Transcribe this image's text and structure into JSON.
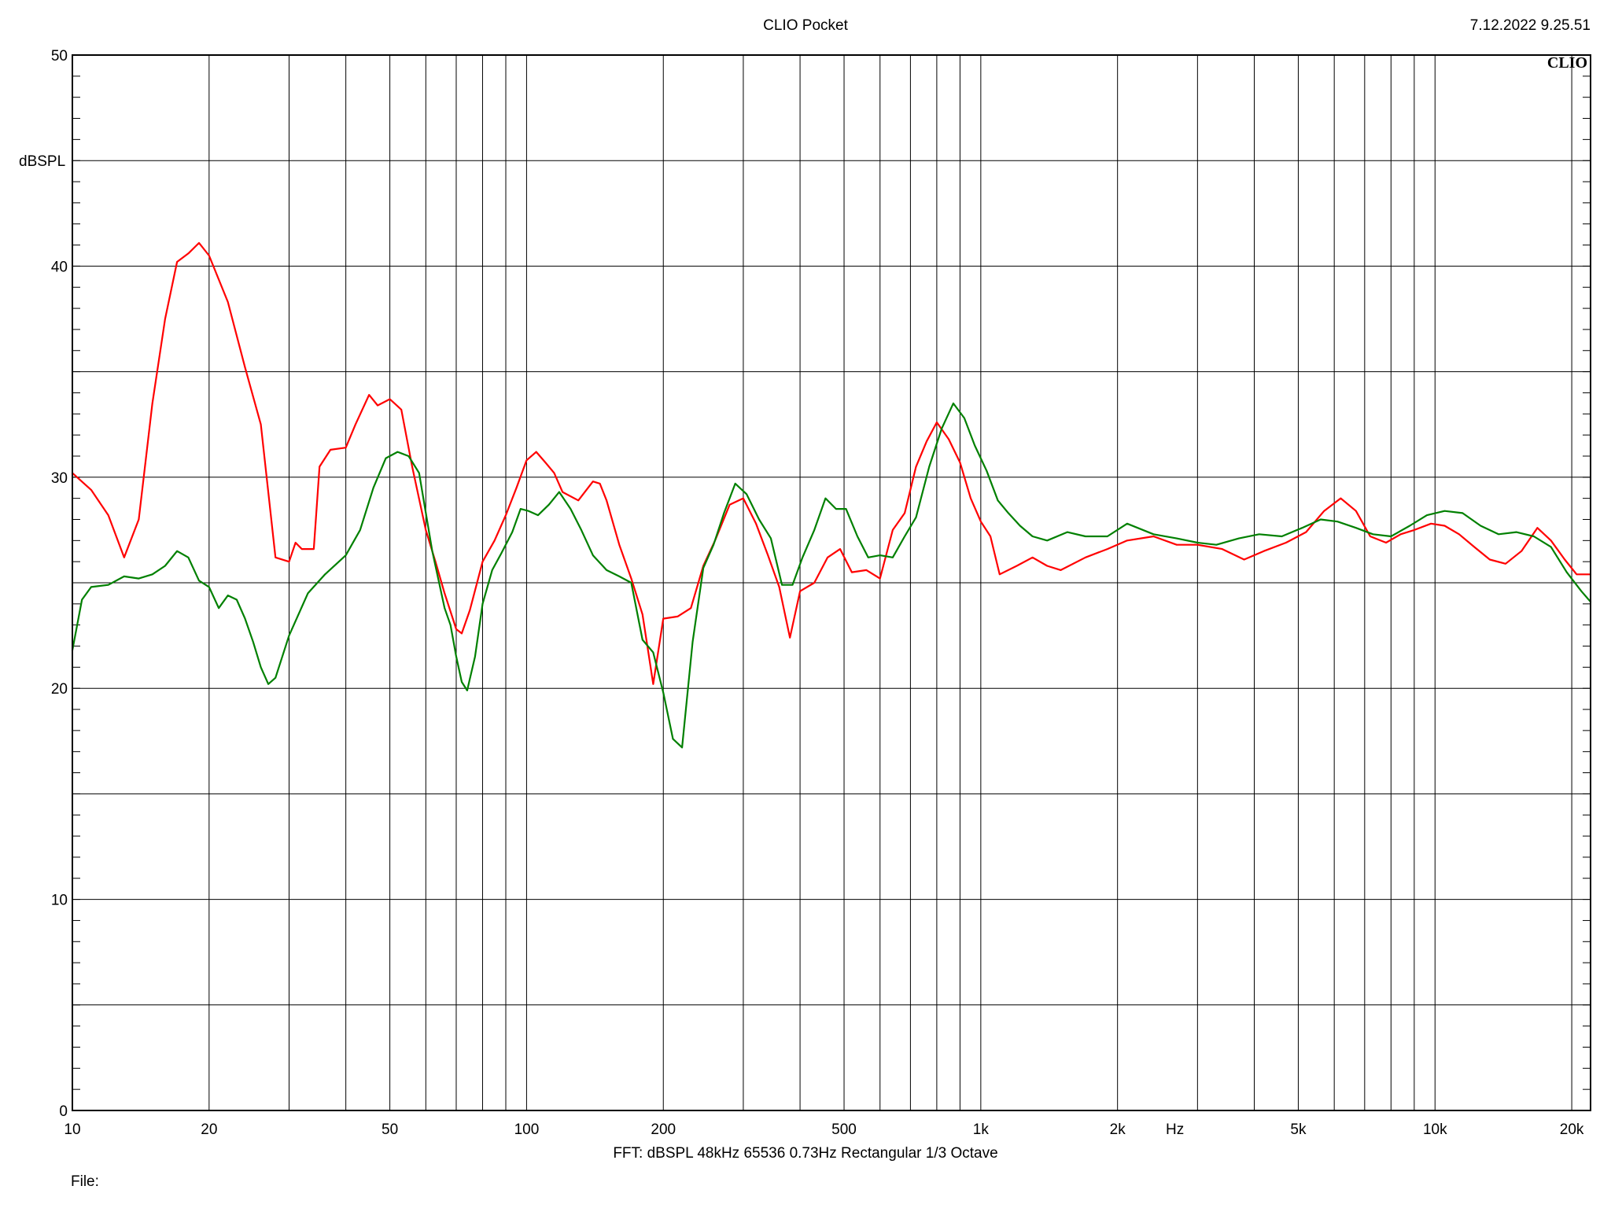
{
  "header": {
    "title": "CLIO Pocket",
    "datetime": "7.12.2022 9.25.51"
  },
  "brand": {
    "logo_text": "CLIO"
  },
  "footer": {
    "settings": "FFT:  dBSPL  48kHz   65536  0.73Hz  Rectangular  1/3 Octave",
    "file_label": "File:"
  },
  "colors": {
    "series_red": "#ff0000",
    "series_green": "#008000",
    "grid": "#000000"
  },
  "chart_data": {
    "type": "line",
    "title": "CLIO Pocket",
    "xlabel": "Hz",
    "ylabel": "dBSPL",
    "x_scale": "log",
    "xlim": [
      10,
      22000
    ],
    "ylim": [
      0,
      50
    ],
    "grid": true,
    "y_ticks": [
      0,
      10,
      20,
      30,
      40,
      50
    ],
    "x_ticks": [
      {
        "value": 10,
        "label": "10"
      },
      {
        "value": 20,
        "label": "20"
      },
      {
        "value": 50,
        "label": "50"
      },
      {
        "value": 100,
        "label": "100"
      },
      {
        "value": 200,
        "label": "200"
      },
      {
        "value": 500,
        "label": "500"
      },
      {
        "value": 1000,
        "label": "1k"
      },
      {
        "value": 2000,
        "label": "2k"
      },
      {
        "value": 5000,
        "label": "5k"
      },
      {
        "value": 10000,
        "label": "10k"
      },
      {
        "value": 20000,
        "label": "20k"
      }
    ],
    "series": [
      {
        "color": "#ff0000",
        "points": [
          [
            10,
            30.2
          ],
          [
            11,
            29.4
          ],
          [
            12,
            28.2
          ],
          [
            13,
            26.2
          ],
          [
            14,
            28
          ],
          [
            15,
            33.5
          ],
          [
            16,
            37.5
          ],
          [
            17,
            40.2
          ],
          [
            18,
            40.6
          ],
          [
            19,
            41.1
          ],
          [
            20,
            40.5
          ],
          [
            22,
            38.3
          ],
          [
            24,
            35.2
          ],
          [
            26,
            32.5
          ],
          [
            28,
            26.2
          ],
          [
            30,
            26
          ],
          [
            31,
            26.9
          ],
          [
            32,
            26.6
          ],
          [
            34,
            26.6
          ],
          [
            35,
            30.5
          ],
          [
            37,
            31.3
          ],
          [
            40,
            31.4
          ],
          [
            42,
            32.5
          ],
          [
            45,
            33.9
          ],
          [
            47,
            33.4
          ],
          [
            50,
            33.7
          ],
          [
            53,
            33.2
          ],
          [
            56,
            30.5
          ],
          [
            60,
            27.5
          ],
          [
            63,
            26
          ],
          [
            66,
            24.5
          ],
          [
            70,
            22.8
          ],
          [
            72,
            22.6
          ],
          [
            75,
            23.7
          ],
          [
            80,
            26
          ],
          [
            85,
            27
          ],
          [
            90,
            28.2
          ],
          [
            95,
            29.5
          ],
          [
            100,
            30.8
          ],
          [
            105,
            31.2
          ],
          [
            110,
            30.7
          ],
          [
            115,
            30.2
          ],
          [
            120,
            29.3
          ],
          [
            130,
            28.9
          ],
          [
            140,
            29.8
          ],
          [
            145,
            29.7
          ],
          [
            150,
            28.9
          ],
          [
            160,
            26.8
          ],
          [
            170,
            25.2
          ],
          [
            180,
            23.5
          ],
          [
            190,
            20.2
          ],
          [
            200,
            23.3
          ],
          [
            215,
            23.4
          ],
          [
            230,
            23.8
          ],
          [
            245,
            25.8
          ],
          [
            260,
            27
          ],
          [
            280,
            28.7
          ],
          [
            300,
            29
          ],
          [
            320,
            27.8
          ],
          [
            340,
            26.3
          ],
          [
            360,
            24.8
          ],
          [
            380,
            22.4
          ],
          [
            400,
            24.6
          ],
          [
            430,
            25
          ],
          [
            460,
            26.2
          ],
          [
            490,
            26.6
          ],
          [
            520,
            25.5
          ],
          [
            560,
            25.6
          ],
          [
            600,
            25.2
          ],
          [
            640,
            27.5
          ],
          [
            680,
            28.3
          ],
          [
            720,
            30.5
          ],
          [
            760,
            31.7
          ],
          [
            800,
            32.6
          ],
          [
            850,
            31.8
          ],
          [
            900,
            30.7
          ],
          [
            950,
            29
          ],
          [
            1000,
            27.9
          ],
          [
            1050,
            27.2
          ],
          [
            1100,
            25.4
          ],
          [
            1200,
            25.8
          ],
          [
            1300,
            26.2
          ],
          [
            1400,
            25.8
          ],
          [
            1500,
            25.6
          ],
          [
            1700,
            26.2
          ],
          [
            1900,
            26.6
          ],
          [
            2100,
            27
          ],
          [
            2400,
            27.2
          ],
          [
            2700,
            26.8
          ],
          [
            3000,
            26.8
          ],
          [
            3400,
            26.6
          ],
          [
            3800,
            26.1
          ],
          [
            4200,
            26.5
          ],
          [
            4700,
            26.9
          ],
          [
            5200,
            27.4
          ],
          [
            5700,
            28.4
          ],
          [
            6200,
            29
          ],
          [
            6700,
            28.4
          ],
          [
            7200,
            27.2
          ],
          [
            7800,
            26.9
          ],
          [
            8400,
            27.3
          ],
          [
            9000,
            27.5
          ],
          [
            9800,
            27.8
          ],
          [
            10500,
            27.7
          ],
          [
            11300,
            27.3
          ],
          [
            12200,
            26.7
          ],
          [
            13200,
            26.1
          ],
          [
            14300,
            25.9
          ],
          [
            15500,
            26.5
          ],
          [
            16800,
            27.6
          ],
          [
            18000,
            27
          ],
          [
            19300,
            26.1
          ],
          [
            20500,
            25.4
          ],
          [
            22000,
            25.4
          ]
        ]
      },
      {
        "color": "#008000",
        "points": [
          [
            10,
            21.8
          ],
          [
            10.5,
            24.2
          ],
          [
            11,
            24.8
          ],
          [
            12,
            24.9
          ],
          [
            13,
            25.3
          ],
          [
            14,
            25.2
          ],
          [
            15,
            25.4
          ],
          [
            16,
            25.8
          ],
          [
            17,
            26.5
          ],
          [
            18,
            26.2
          ],
          [
            19,
            25.1
          ],
          [
            20,
            24.8
          ],
          [
            21,
            23.8
          ],
          [
            22,
            24.4
          ],
          [
            23,
            24.2
          ],
          [
            24,
            23.3
          ],
          [
            25,
            22.2
          ],
          [
            26,
            21
          ],
          [
            27,
            20.2
          ],
          [
            28,
            20.5
          ],
          [
            30,
            22.5
          ],
          [
            33,
            24.5
          ],
          [
            36,
            25.4
          ],
          [
            40,
            26.3
          ],
          [
            43,
            27.5
          ],
          [
            46,
            29.5
          ],
          [
            49,
            30.9
          ],
          [
            52,
            31.2
          ],
          [
            55,
            31
          ],
          [
            58,
            30.2
          ],
          [
            62,
            26.5
          ],
          [
            66,
            23.8
          ],
          [
            68,
            23
          ],
          [
            70,
            21.5
          ],
          [
            72,
            20.3
          ],
          [
            74,
            19.9
          ],
          [
            77,
            21.5
          ],
          [
            80,
            24
          ],
          [
            84,
            25.6
          ],
          [
            88,
            26.4
          ],
          [
            93,
            27.4
          ],
          [
            97,
            28.5
          ],
          [
            101,
            28.4
          ],
          [
            106,
            28.2
          ],
          [
            112,
            28.7
          ],
          [
            118,
            29.3
          ],
          [
            125,
            28.5
          ],
          [
            132,
            27.5
          ],
          [
            140,
            26.3
          ],
          [
            150,
            25.6
          ],
          [
            160,
            25.3
          ],
          [
            170,
            25
          ],
          [
            180,
            22.3
          ],
          [
            190,
            21.7
          ],
          [
            200,
            19.8
          ],
          [
            210,
            17.6
          ],
          [
            220,
            17.2
          ],
          [
            232,
            22.2
          ],
          [
            245,
            25.7
          ],
          [
            258,
            26.8
          ],
          [
            272,
            28.3
          ],
          [
            288,
            29.7
          ],
          [
            305,
            29.2
          ],
          [
            325,
            28
          ],
          [
            345,
            27.1
          ],
          [
            365,
            24.9
          ],
          [
            385,
            24.9
          ],
          [
            405,
            26.2
          ],
          [
            430,
            27.5
          ],
          [
            455,
            29
          ],
          [
            480,
            28.5
          ],
          [
            505,
            28.5
          ],
          [
            535,
            27.2
          ],
          [
            565,
            26.2
          ],
          [
            600,
            26.3
          ],
          [
            640,
            26.2
          ],
          [
            680,
            27.2
          ],
          [
            720,
            28.1
          ],
          [
            770,
            30.5
          ],
          [
            820,
            32.3
          ],
          [
            870,
            33.5
          ],
          [
            920,
            32.8
          ],
          [
            970,
            31.5
          ],
          [
            1030,
            30.3
          ],
          [
            1090,
            28.9
          ],
          [
            1150,
            28.3
          ],
          [
            1220,
            27.7
          ],
          [
            1300,
            27.2
          ],
          [
            1400,
            27
          ],
          [
            1550,
            27.4
          ],
          [
            1700,
            27.2
          ],
          [
            1900,
            27.2
          ],
          [
            2100,
            27.8
          ],
          [
            2400,
            27.3
          ],
          [
            2700,
            27.1
          ],
          [
            3000,
            26.9
          ],
          [
            3300,
            26.8
          ],
          [
            3700,
            27.1
          ],
          [
            4100,
            27.3
          ],
          [
            4600,
            27.2
          ],
          [
            5100,
            27.6
          ],
          [
            5600,
            28
          ],
          [
            6100,
            27.9
          ],
          [
            6700,
            27.6
          ],
          [
            7300,
            27.3
          ],
          [
            8000,
            27.2
          ],
          [
            8800,
            27.7
          ],
          [
            9600,
            28.2
          ],
          [
            10500,
            28.4
          ],
          [
            11500,
            28.3
          ],
          [
            12600,
            27.7
          ],
          [
            13800,
            27.3
          ],
          [
            15100,
            27.4
          ],
          [
            16500,
            27.2
          ],
          [
            18000,
            26.7
          ],
          [
            19500,
            25.5
          ],
          [
            21000,
            24.6
          ],
          [
            22000,
            24.1
          ]
        ]
      }
    ]
  }
}
